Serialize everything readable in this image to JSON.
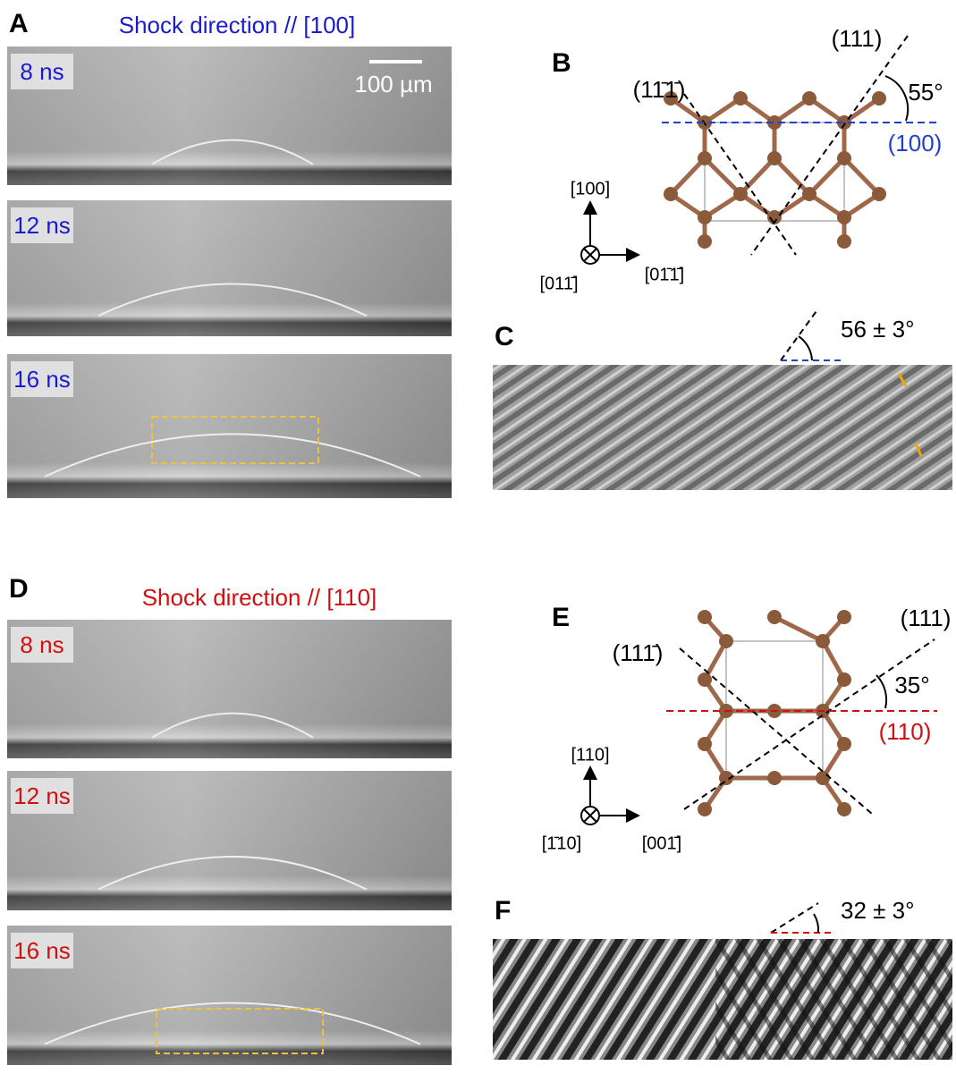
{
  "panels": [
    {
      "label": "A",
      "title": "Shock direction // [100]",
      "frames": [
        "8 ns",
        "12 ns",
        "16 ns"
      ],
      "scale_bar": "100 µm"
    },
    {
      "label": "B",
      "planes": [
        "(11̄1̄)",
        "(111)",
        "(100)"
      ],
      "angle": "55°",
      "axes": [
        "[100]",
        "[011̄]",
        "[01̄1̄]"
      ]
    },
    {
      "label": "C",
      "angle": "56 ± 3°"
    },
    {
      "label": "D",
      "title": "Shock direction // [110]",
      "frames": [
        "8 ns",
        "12 ns",
        "16 ns"
      ]
    },
    {
      "label": "E",
      "planes": [
        "(111̄)",
        "(111)",
        "(110)"
      ],
      "angle": "35°",
      "axes": [
        "[110]",
        "[1̄10]",
        "[001̄]"
      ]
    },
    {
      "label": "F",
      "angle": "32 ± 3°"
    }
  ]
}
